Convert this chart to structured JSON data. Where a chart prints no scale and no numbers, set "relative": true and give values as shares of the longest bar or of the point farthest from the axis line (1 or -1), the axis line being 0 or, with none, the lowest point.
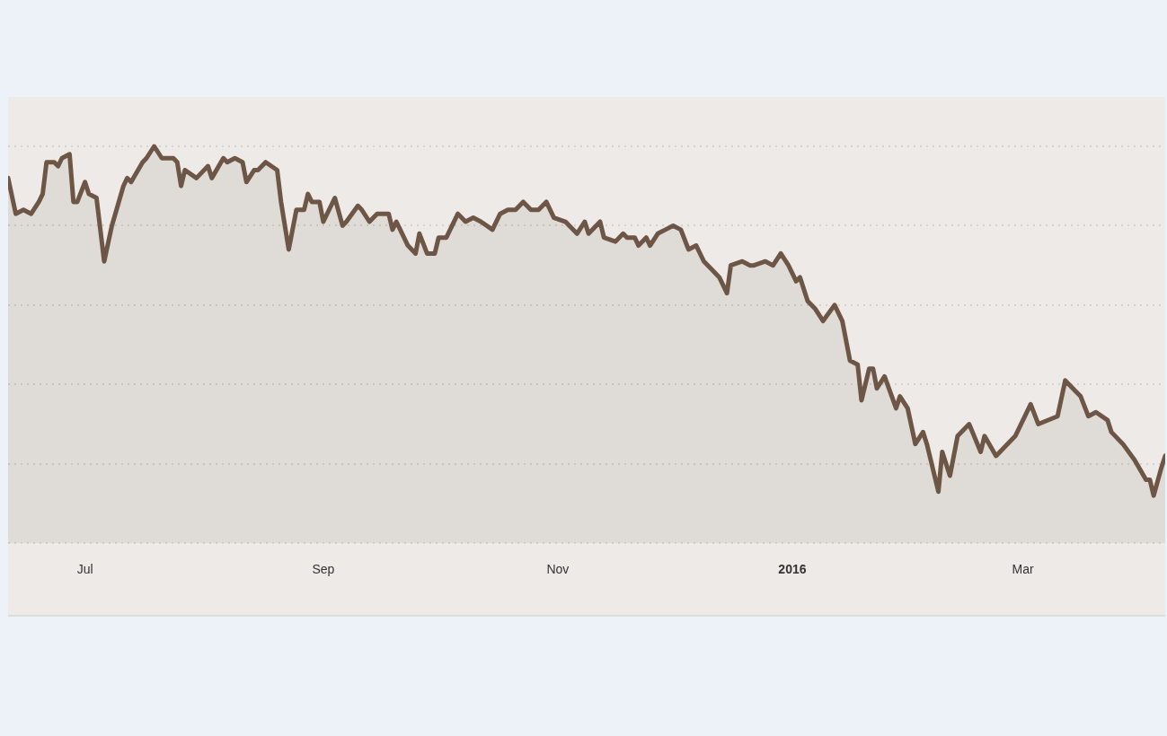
{
  "chart_data": {
    "type": "area",
    "relative": true,
    "grid": "y",
    "marker": "none",
    "legend": false,
    "xlim": [
      "2015-06-11",
      "2016-04-07"
    ],
    "xticks": [
      {
        "value": "2015-07-01",
        "label": "Jul"
      },
      {
        "value": "2015-09-01",
        "label": "Sep"
      },
      {
        "value": "2015-11-01",
        "label": "Nov"
      },
      {
        "value": "2016-01-01",
        "label": "2016"
      },
      {
        "value": "2016-03-01",
        "label": "Mar"
      }
    ],
    "x": [
      "2015-06-11",
      "2015-06-13",
      "2015-06-15",
      "2015-06-17",
      "2015-06-19",
      "2015-06-20",
      "2015-06-21",
      "2015-06-23",
      "2015-06-24",
      "2015-06-25",
      "2015-06-27",
      "2015-06-28",
      "2015-06-29",
      "2015-07-01",
      "2015-07-02",
      "2015-07-04",
      "2015-07-06",
      "2015-07-08",
      "2015-07-11",
      "2015-07-12",
      "2015-07-13",
      "2015-07-16",
      "2015-07-17",
      "2015-07-19",
      "2015-07-21",
      "2015-07-24",
      "2015-07-25",
      "2015-07-26",
      "2015-07-27",
      "2015-07-30",
      "2015-08-02",
      "2015-08-03",
      "2015-08-06",
      "2015-08-07",
      "2015-08-09",
      "2015-08-11",
      "2015-08-12",
      "2015-08-14",
      "2015-08-15",
      "2015-08-17",
      "2015-08-20",
      "2015-08-21",
      "2015-08-23",
      "2015-08-25",
      "2015-08-27",
      "2015-08-28",
      "2015-08-29",
      "2015-08-31",
      "2015-09-01",
      "2015-09-04",
      "2015-09-06",
      "2015-09-07",
      "2015-09-10",
      "2015-09-11",
      "2015-09-13",
      "2015-09-15",
      "2015-09-18",
      "2015-09-19",
      "2015-09-20",
      "2015-09-23",
      "2015-09-25",
      "2015-09-26",
      "2015-09-28",
      "2015-09-30",
      "2015-10-01",
      "2015-10-03",
      "2015-10-04",
      "2015-10-06",
      "2015-10-08",
      "2015-10-10",
      "2015-10-12",
      "2015-10-15",
      "2015-10-17",
      "2015-10-19",
      "2015-10-21",
      "2015-10-23",
      "2015-10-25",
      "2015-10-27",
      "2015-10-29",
      "2015-10-31",
      "2015-11-03",
      "2015-11-04",
      "2015-11-06",
      "2015-11-08",
      "2015-11-09",
      "2015-11-12",
      "2015-11-13",
      "2015-11-16",
      "2015-11-18",
      "2015-11-19",
      "2015-11-21",
      "2015-11-22",
      "2015-11-24",
      "2015-11-25",
      "2015-11-27",
      "2015-11-29",
      "2015-12-01",
      "2015-12-03",
      "2015-12-05",
      "2015-12-07",
      "2015-12-09",
      "2015-12-11",
      "2015-12-13",
      "2015-12-15",
      "2015-12-16",
      "2015-12-19",
      "2015-12-21",
      "2015-12-22",
      "2015-12-25",
      "2015-12-27",
      "2015-12-29",
      "2015-12-31",
      "2016-01-02",
      "2016-01-03",
      "2016-01-05",
      "2016-01-07",
      "2016-01-09",
      "2016-01-12",
      "2016-01-14",
      "2016-01-16",
      "2016-01-18",
      "2016-01-19",
      "2016-01-21",
      "2016-01-22",
      "2016-01-23",
      "2016-01-25",
      "2016-01-28",
      "2016-01-29",
      "2016-01-31",
      "2016-02-02",
      "2016-02-04",
      "2016-02-05",
      "2016-02-08",
      "2016-02-09",
      "2016-02-11",
      "2016-02-13",
      "2016-02-16",
      "2016-02-19",
      "2016-02-20",
      "2016-02-23",
      "2016-02-28",
      "2016-03-03",
      "2016-03-05",
      "2016-03-10",
      "2016-03-12",
      "2016-03-15",
      "2016-03-16",
      "2016-03-18",
      "2016-03-20",
      "2016-03-23",
      "2016-03-24",
      "2016-03-27",
      "2016-03-30",
      "2016-04-02",
      "2016-04-03",
      "2016-04-04",
      "2016-04-06",
      "2016-04-07"
    ],
    "series": [
      {
        "color": "#6e5646",
        "values": [
          0.92,
          0.83,
          0.84,
          0.83,
          0.86,
          0.88,
          0.96,
          0.96,
          0.95,
          0.97,
          0.98,
          0.86,
          0.86,
          0.91,
          0.88,
          0.87,
          0.71,
          0.8,
          0.9,
          0.92,
          0.91,
          0.96,
          0.97,
          1.0,
          0.97,
          0.97,
          0.96,
          0.9,
          0.94,
          0.92,
          0.95,
          0.92,
          0.97,
          0.96,
          0.97,
          0.96,
          0.91,
          0.94,
          0.94,
          0.96,
          0.94,
          0.86,
          0.74,
          0.84,
          0.84,
          0.88,
          0.86,
          0.86,
          0.81,
          0.87,
          0.8,
          0.81,
          0.85,
          0.84,
          0.81,
          0.83,
          0.83,
          0.79,
          0.81,
          0.75,
          0.73,
          0.78,
          0.73,
          0.73,
          0.77,
          0.77,
          0.79,
          0.83,
          0.81,
          0.82,
          0.81,
          0.79,
          0.83,
          0.84,
          0.84,
          0.86,
          0.84,
          0.84,
          0.86,
          0.82,
          0.81,
          0.8,
          0.78,
          0.81,
          0.78,
          0.81,
          0.77,
          0.76,
          0.78,
          0.77,
          0.77,
          0.75,
          0.77,
          0.75,
          0.78,
          0.79,
          0.8,
          0.79,
          0.74,
          0.75,
          0.71,
          0.69,
          0.67,
          0.63,
          0.7,
          0.71,
          0.7,
          0.7,
          0.71,
          0.7,
          0.73,
          0.7,
          0.66,
          0.67,
          0.61,
          0.59,
          0.56,
          0.6,
          0.56,
          0.46,
          0.45,
          0.36,
          0.44,
          0.44,
          0.39,
          0.42,
          0.34,
          0.37,
          0.34,
          0.25,
          0.28,
          0.25,
          0.13,
          0.23,
          0.17,
          0.27,
          0.3,
          0.23,
          0.27,
          0.22,
          0.27,
          0.35,
          0.3,
          0.32,
          0.41,
          0.38,
          0.37,
          0.32,
          0.33,
          0.31,
          0.28,
          0.25,
          0.21,
          0.16,
          0.16,
          0.12,
          0.19,
          0.22
        ]
      }
    ]
  }
}
